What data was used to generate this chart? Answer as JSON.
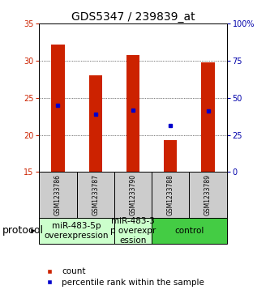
{
  "title": "GDS5347 / 239839_at",
  "samples": [
    "GSM1233786",
    "GSM1233787",
    "GSM1233790",
    "GSM1233788",
    "GSM1233789"
  ],
  "bar_values": [
    32.2,
    28.0,
    30.7,
    19.3,
    29.8
  ],
  "bar_bottom": 15.0,
  "percentile_values": [
    24.0,
    22.8,
    23.3,
    21.3,
    23.2
  ],
  "ylim_left": [
    15,
    35
  ],
  "ylim_right": [
    0,
    100
  ],
  "yticks_left": [
    15,
    20,
    25,
    30,
    35
  ],
  "yticks_right": [
    0,
    25,
    50,
    75,
    100
  ],
  "bar_color": "#cc2200",
  "percentile_color": "#0000cc",
  "plot_bg": "#ffffff",
  "bar_width": 0.35,
  "groups": [
    {
      "label": "miR-483-5p\noverexpression",
      "span": [
        0,
        1
      ],
      "color": "#ccffcc"
    },
    {
      "label": "miR-483-3\np overexpr\nession",
      "span": [
        2,
        2
      ],
      "color": "#ccffcc"
    },
    {
      "label": "control",
      "span": [
        3,
        4
      ],
      "color": "#44cc44"
    }
  ],
  "protocol_label": "protocol",
  "legend_count_label": "count",
  "legend_percentile_label": "percentile rank within the sample",
  "left_tick_color": "#cc2200",
  "right_tick_color": "#0000aa",
  "sample_box_color": "#cccccc",
  "font_size_title": 10,
  "font_size_ticks": 7,
  "font_size_sample": 5.5,
  "font_size_legend": 7.5,
  "font_size_protocol": 9,
  "font_size_group": 7.5
}
